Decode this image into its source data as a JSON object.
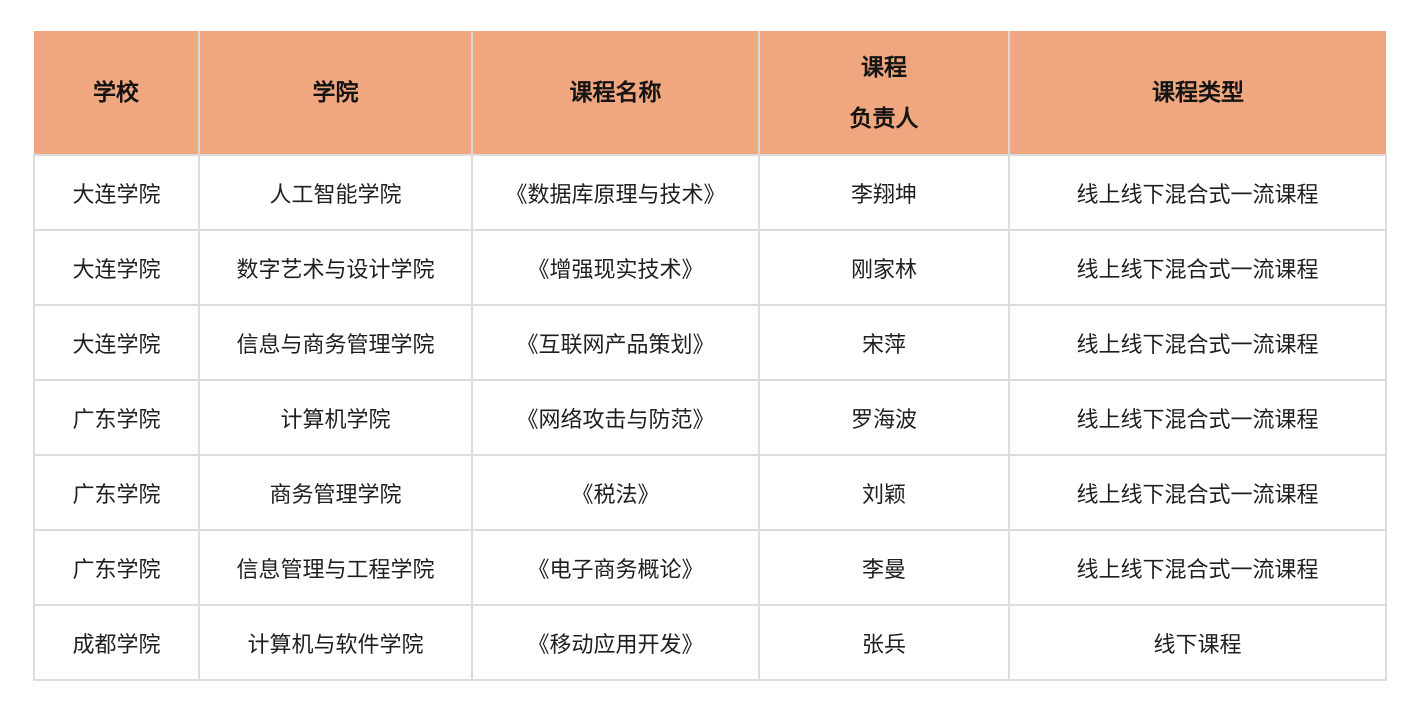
{
  "colors": {
    "header_background": "#F0A67E",
    "grid_line": "#DCDCDC",
    "header_divider": "#D9D9D9",
    "header_text": "#141414",
    "body_text": "#1F1F1F",
    "page_background": "#FFFFFF"
  },
  "table": {
    "headers": {
      "school": "学校",
      "college": "学院",
      "course_name": "课程名称",
      "leader": "课程\n负责人",
      "course_type": "课程类型"
    },
    "rows": [
      {
        "school": "大连学院",
        "college": "人工智能学院",
        "course_name": "《数据库原理与技术》",
        "leader": "李翔坤",
        "course_type": "线上线下混合式一流课程"
      },
      {
        "school": "大连学院",
        "college": "数字艺术与设计学院",
        "course_name": "《增强现实技术》",
        "leader": "刚家林",
        "course_type": "线上线下混合式一流课程"
      },
      {
        "school": "大连学院",
        "college": "信息与商务管理学院",
        "course_name": "《互联网产品策划》",
        "leader": "宋萍",
        "course_type": "线上线下混合式一流课程"
      },
      {
        "school": "广东学院",
        "college": "计算机学院",
        "course_name": "《网络攻击与防范》",
        "leader": "罗海波",
        "course_type": "线上线下混合式一流课程"
      },
      {
        "school": "广东学院",
        "college": "商务管理学院",
        "course_name": "《税法》",
        "leader": "刘颖",
        "course_type": "线上线下混合式一流课程"
      },
      {
        "school": "广东学院",
        "college": "信息管理与工程学院",
        "course_name": "《电子商务概论》",
        "leader": "李曼",
        "course_type": "线上线下混合式一流课程"
      },
      {
        "school": "成都学院",
        "college": "计算机与软件学院",
        "course_name": "《移动应用开发》",
        "leader": "张兵",
        "course_type": "线下课程"
      }
    ]
  }
}
